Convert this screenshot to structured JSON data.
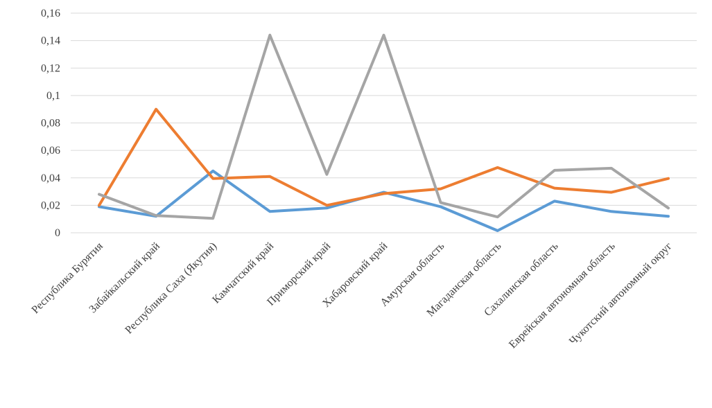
{
  "chart_data": {
    "type": "line",
    "title": "",
    "xlabel": "",
    "ylabel": "",
    "ylim": [
      0,
      0.16
    ],
    "y_ticks": [
      "0",
      "0,02",
      "0,04",
      "0,06",
      "0,08",
      "0,1",
      "0,12",
      "0,14",
      "0,16"
    ],
    "grid": true,
    "legend": "none",
    "categories": [
      "Республика Бурятия",
      "Забайкальский край",
      "Республика Саха (Якутия)",
      "Камчатский край",
      "Приморский край",
      "Хабаровский край",
      "Амурская область",
      "Магаданская область",
      "Сахалинская область",
      "Еврейская автономная область",
      "Чукотский автономный округ"
    ],
    "series": [
      {
        "color": "#5b9bd5",
        "values": [
          0.019,
          0.012,
          0.045,
          0.0155,
          0.018,
          0.0295,
          0.019,
          0.0015,
          0.023,
          0.0155,
          0.012
        ]
      },
      {
        "color": "#ed7d31",
        "values": [
          0.02,
          0.09,
          0.0395,
          0.041,
          0.02,
          0.0285,
          0.032,
          0.0475,
          0.0325,
          0.0295,
          0.0395
        ]
      },
      {
        "color": "#a5a5a5",
        "values": [
          0.028,
          0.0125,
          0.0105,
          0.144,
          0.0425,
          0.144,
          0.022,
          0.0115,
          0.0455,
          0.047,
          0.018
        ]
      }
    ]
  }
}
